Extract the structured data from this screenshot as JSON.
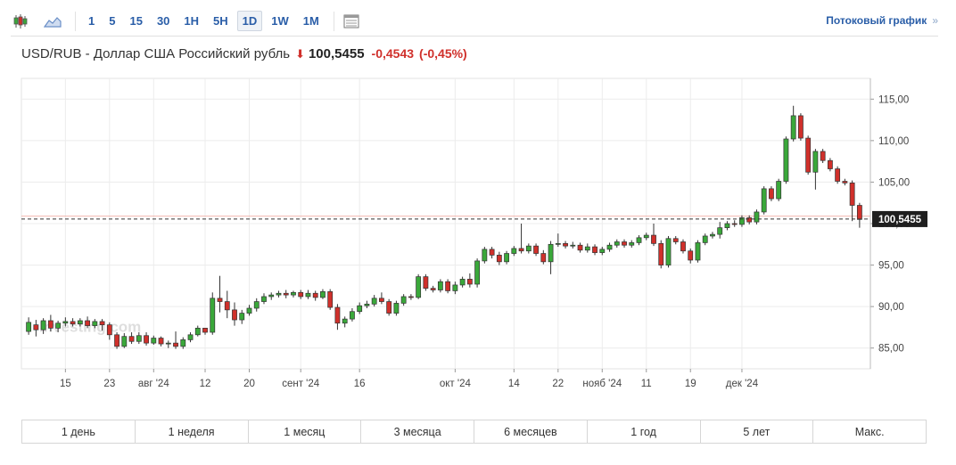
{
  "toolbar": {
    "chart_type_icons": [
      "candlestick-icon",
      "area-chart-icon"
    ],
    "intervals": [
      "1",
      "5",
      "15",
      "30",
      "1H",
      "5H",
      "1D",
      "1W",
      "1M"
    ],
    "active_interval": "1D",
    "table_icon": "table-icon",
    "stream_link": "Потоковый график",
    "stream_chevron": "»"
  },
  "header": {
    "name": "USD/RUB - Доллар США Российский рубль",
    "direction_icon": "arrow-down-icon",
    "price": "100,5455",
    "change": "-0,4543",
    "change_pct": "(-0,45%)",
    "down_color": "#d0302b",
    "up_color": "#3aa83a"
  },
  "watermark": "Investing.com",
  "chart_data": {
    "type": "candlestick",
    "y_ticks": [
      "85,00",
      "90,00",
      "95,00",
      "100,00",
      "105,00",
      "110,00",
      "115,00"
    ],
    "y_tick_values": [
      85,
      90,
      95,
      100,
      105,
      110,
      115
    ],
    "ylim": [
      82.5,
      117.5
    ],
    "x_ticks": [
      "15",
      "23",
      "авг '24",
      "12",
      "20",
      "сент '24",
      "16",
      "окт '24",
      "14",
      "22",
      "нояб '24",
      "11",
      "19",
      "дек '24"
    ],
    "x_tick_index": [
      5,
      11,
      17,
      24,
      30,
      37,
      45,
      58,
      66,
      72,
      78,
      84,
      90,
      97
    ],
    "last_price_label": "100,5455",
    "last_price": 100.5455,
    "reference_level": 100.9,
    "grid": true,
    "candles": [
      [
        87.0,
        88.1,
        86.6,
        88.7
      ],
      [
        87.8,
        87.2,
        86.4,
        88.4
      ],
      [
        87.2,
        88.3,
        86.7,
        88.6
      ],
      [
        88.3,
        87.4,
        87.0,
        89.0
      ],
      [
        87.4,
        88.0,
        86.9,
        88.3
      ],
      [
        88.0,
        88.2,
        87.6,
        88.7
      ],
      [
        88.2,
        87.9,
        87.6,
        88.6
      ],
      [
        87.9,
        88.3,
        87.6,
        88.6
      ],
      [
        88.3,
        87.7,
        87.4,
        88.8
      ],
      [
        87.7,
        88.2,
        87.4,
        88.5
      ],
      [
        88.2,
        87.8,
        87.1,
        88.5
      ],
      [
        87.8,
        86.6,
        86.0,
        88.1
      ],
      [
        86.6,
        85.2,
        84.9,
        86.9
      ],
      [
        85.2,
        86.4,
        85.0,
        86.8
      ],
      [
        86.4,
        85.8,
        85.5,
        86.9
      ],
      [
        85.8,
        86.5,
        85.5,
        86.9
      ],
      [
        86.5,
        85.6,
        85.3,
        86.9
      ],
      [
        85.6,
        86.2,
        85.4,
        86.5
      ],
      [
        86.2,
        85.5,
        85.2,
        86.4
      ],
      [
        85.5,
        85.6,
        85.0,
        85.9
      ],
      [
        85.6,
        85.2,
        84.9,
        87.0
      ],
      [
        85.2,
        86.0,
        84.9,
        86.3
      ],
      [
        86.0,
        86.6,
        85.7,
        86.9
      ],
      [
        86.6,
        87.4,
        86.4,
        87.7
      ],
      [
        87.4,
        86.9,
        86.6,
        87.3
      ],
      [
        86.9,
        91.0,
        86.6,
        91.7
      ],
      [
        91.0,
        90.6,
        89.3,
        93.7
      ],
      [
        90.6,
        89.6,
        88.6,
        91.9
      ],
      [
        89.6,
        88.4,
        87.7,
        90.5
      ],
      [
        88.4,
        89.2,
        87.9,
        89.6
      ],
      [
        89.2,
        89.8,
        88.9,
        90.2
      ],
      [
        89.8,
        90.6,
        89.4,
        91.0
      ],
      [
        90.6,
        91.2,
        90.3,
        91.6
      ],
      [
        91.2,
        91.4,
        90.8,
        91.7
      ],
      [
        91.4,
        91.6,
        91.1,
        91.9
      ],
      [
        91.6,
        91.4,
        91.0,
        92.0
      ],
      [
        91.4,
        91.7,
        91.1,
        91.9
      ],
      [
        91.7,
        91.2,
        90.9,
        92.0
      ],
      [
        91.2,
        91.6,
        90.9,
        92.0
      ],
      [
        91.6,
        91.1,
        90.7,
        91.9
      ],
      [
        91.1,
        91.8,
        90.9,
        92.1
      ],
      [
        91.8,
        89.9,
        89.6,
        92.1
      ],
      [
        89.9,
        88.0,
        87.2,
        90.3
      ],
      [
        88.0,
        88.5,
        87.5,
        88.8
      ],
      [
        88.5,
        89.4,
        88.2,
        89.8
      ],
      [
        89.4,
        90.1,
        89.1,
        90.5
      ],
      [
        90.1,
        90.3,
        89.8,
        90.7
      ],
      [
        90.3,
        91.0,
        90.0,
        91.4
      ],
      [
        91.0,
        90.6,
        90.3,
        91.7
      ],
      [
        90.6,
        89.2,
        88.9,
        90.9
      ],
      [
        89.2,
        90.4,
        88.9,
        90.7
      ],
      [
        90.4,
        91.2,
        90.1,
        91.5
      ],
      [
        91.2,
        91.1,
        90.8,
        91.5
      ],
      [
        91.1,
        93.6,
        90.9,
        93.9
      ],
      [
        93.6,
        92.2,
        91.9,
        93.9
      ],
      [
        92.2,
        92.0,
        91.7,
        92.5
      ],
      [
        92.0,
        93.0,
        91.7,
        93.3
      ],
      [
        93.0,
        91.9,
        91.6,
        93.3
      ],
      [
        91.9,
        92.6,
        91.5,
        93.0
      ],
      [
        92.6,
        93.3,
        92.3,
        93.6
      ],
      [
        93.3,
        92.7,
        92.3,
        94.0
      ],
      [
        92.7,
        95.5,
        92.3,
        95.8
      ],
      [
        95.5,
        96.9,
        95.2,
        97.2
      ],
      [
        96.9,
        96.2,
        95.8,
        97.2
      ],
      [
        96.2,
        95.4,
        95.0,
        96.6
      ],
      [
        95.4,
        96.4,
        95.1,
        96.7
      ],
      [
        96.4,
        97.0,
        96.1,
        97.3
      ],
      [
        97.0,
        96.7,
        96.4,
        100.0
      ],
      [
        96.7,
        97.3,
        96.4,
        97.6
      ],
      [
        97.3,
        96.4,
        96.1,
        97.6
      ],
      [
        96.4,
        95.4,
        95.1,
        96.8
      ],
      [
        95.4,
        97.5,
        93.9,
        97.9
      ],
      [
        97.5,
        97.6,
        97.2,
        98.8
      ],
      [
        97.6,
        97.3,
        97.0,
        97.9
      ],
      [
        97.3,
        97.4,
        97.0,
        97.8
      ],
      [
        97.4,
        96.8,
        96.5,
        97.7
      ],
      [
        96.8,
        97.2,
        96.5,
        97.6
      ],
      [
        97.2,
        96.5,
        96.2,
        97.5
      ],
      [
        96.5,
        96.9,
        96.2,
        97.2
      ],
      [
        96.9,
        97.4,
        96.6,
        97.7
      ],
      [
        97.4,
        97.8,
        97.1,
        98.1
      ],
      [
        97.8,
        97.4,
        97.1,
        98.1
      ],
      [
        97.4,
        97.7,
        97.1,
        98.0
      ],
      [
        97.7,
        98.3,
        97.4,
        98.6
      ],
      [
        98.3,
        98.6,
        98.0,
        98.9
      ],
      [
        98.6,
        97.6,
        97.3,
        100.0
      ],
      [
        97.6,
        95.0,
        94.6,
        98.0
      ],
      [
        95.0,
        98.2,
        94.7,
        98.5
      ],
      [
        98.2,
        97.8,
        97.5,
        98.5
      ],
      [
        97.8,
        96.7,
        96.4,
        98.1
      ],
      [
        96.7,
        95.6,
        95.2,
        97.0
      ],
      [
        95.6,
        97.7,
        95.3,
        98.0
      ],
      [
        97.7,
        98.5,
        97.4,
        98.8
      ],
      [
        98.5,
        98.7,
        98.2,
        99.0
      ],
      [
        98.7,
        99.5,
        98.2,
        100.2
      ],
      [
        99.5,
        100.0,
        99.2,
        100.3
      ],
      [
        100.0,
        99.9,
        99.6,
        100.4
      ],
      [
        99.9,
        100.7,
        99.6,
        101.0
      ],
      [
        100.7,
        100.2,
        99.9,
        101.0
      ],
      [
        100.2,
        101.4,
        99.9,
        101.7
      ],
      [
        101.4,
        104.2,
        101.1,
        104.5
      ],
      [
        104.2,
        103.0,
        102.7,
        104.5
      ],
      [
        103.0,
        105.1,
        102.7,
        105.4
      ],
      [
        105.1,
        110.2,
        104.8,
        110.5
      ],
      [
        110.2,
        113.0,
        109.9,
        114.2
      ],
      [
        113.0,
        110.3,
        110.0,
        113.3
      ],
      [
        110.3,
        106.2,
        105.9,
        110.6
      ],
      [
        106.2,
        108.7,
        104.1,
        109.0
      ],
      [
        108.7,
        107.6,
        107.3,
        109.0
      ],
      [
        107.6,
        106.6,
        106.3,
        107.9
      ],
      [
        106.6,
        105.1,
        104.8,
        106.9
      ],
      [
        105.1,
        104.9,
        104.6,
        105.4
      ],
      [
        104.9,
        102.2,
        100.3,
        105.2
      ],
      [
        102.2,
        100.5,
        99.5,
        102.5
      ]
    ]
  },
  "ranges": [
    "1 день",
    "1 неделя",
    "1 месяц",
    "3 месяца",
    "6 месяцев",
    "1 год",
    "5 лет",
    "Макс."
  ]
}
